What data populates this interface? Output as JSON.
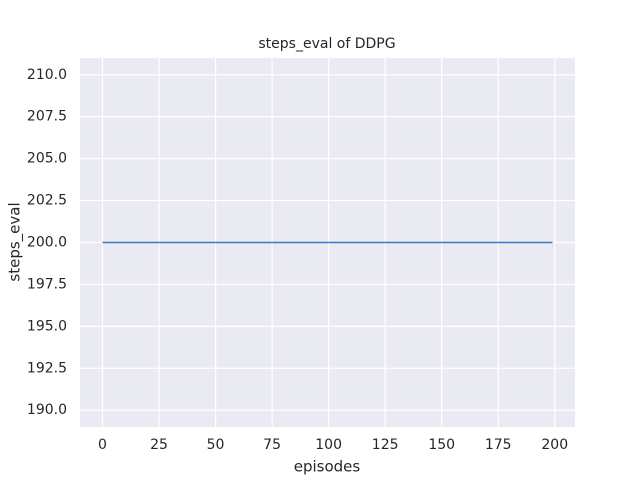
{
  "chart_data": {
    "type": "line",
    "title": "steps_eval of DDPG",
    "xlabel": "episodes",
    "ylabel": "steps_eval",
    "x": [
      0,
      1,
      2,
      3,
      4,
      5,
      6,
      7,
      8,
      9,
      10,
      11,
      12,
      13,
      14,
      15,
      16,
      17,
      18,
      19,
      20,
      21,
      22,
      23,
      24,
      25,
      26,
      27,
      28,
      29,
      30,
      31,
      32,
      33,
      34,
      35,
      36,
      37,
      38,
      39,
      40,
      41,
      42,
      43,
      44,
      45,
      46,
      47,
      48,
      49,
      50,
      51,
      52,
      53,
      54,
      55,
      56,
      57,
      58,
      59,
      60,
      61,
      62,
      63,
      64,
      65,
      66,
      67,
      68,
      69,
      70,
      71,
      72,
      73,
      74,
      75,
      76,
      77,
      78,
      79,
      80,
      81,
      82,
      83,
      84,
      85,
      86,
      87,
      88,
      89,
      90,
      91,
      92,
      93,
      94,
      95,
      96,
      97,
      98,
      99,
      100,
      101,
      102,
      103,
      104,
      105,
      106,
      107,
      108,
      109,
      110,
      111,
      112,
      113,
      114,
      115,
      116,
      117,
      118,
      119,
      120,
      121,
      122,
      123,
      124,
      125,
      126,
      127,
      128,
      129,
      130,
      131,
      132,
      133,
      134,
      135,
      136,
      137,
      138,
      139,
      140,
      141,
      142,
      143,
      144,
      145,
      146,
      147,
      148,
      149,
      150,
      151,
      152,
      153,
      154,
      155,
      156,
      157,
      158,
      159,
      160,
      161,
      162,
      163,
      164,
      165,
      166,
      167,
      168,
      169,
      170,
      171,
      172,
      173,
      174,
      175,
      176,
      177,
      178,
      179,
      180,
      181,
      182,
      183,
      184,
      185,
      186,
      187,
      188,
      189,
      190,
      191,
      192,
      193,
      194,
      195,
      196,
      197,
      198,
      199
    ],
    "series": [
      {
        "color": "#4c72b0",
        "values": [
          200,
          200,
          200,
          200,
          200,
          200,
          200,
          200,
          200,
          200,
          200,
          200,
          200,
          200,
          200,
          200,
          200,
          200,
          200,
          200,
          200,
          200,
          200,
          200,
          200,
          200,
          200,
          200,
          200,
          200,
          200,
          200,
          200,
          200,
          200,
          200,
          200,
          200,
          200,
          200,
          200,
          200,
          200,
          200,
          200,
          200,
          200,
          200,
          200,
          200,
          200,
          200,
          200,
          200,
          200,
          200,
          200,
          200,
          200,
          200,
          200,
          200,
          200,
          200,
          200,
          200,
          200,
          200,
          200,
          200,
          200,
          200,
          200,
          200,
          200,
          200,
          200,
          200,
          200,
          200,
          200,
          200,
          200,
          200,
          200,
          200,
          200,
          200,
          200,
          200,
          200,
          200,
          200,
          200,
          200,
          200,
          200,
          200,
          200,
          200,
          200,
          200,
          200,
          200,
          200,
          200,
          200,
          200,
          200,
          200,
          200,
          200,
          200,
          200,
          200,
          200,
          200,
          200,
          200,
          200,
          200,
          200,
          200,
          200,
          200,
          200,
          200,
          200,
          200,
          200,
          200,
          200,
          200,
          200,
          200,
          200,
          200,
          200,
          200,
          200,
          200,
          200,
          200,
          200,
          200,
          200,
          200,
          200,
          200,
          200,
          200,
          200,
          200,
          200,
          200,
          200,
          200,
          200,
          200,
          200,
          200,
          200,
          200,
          200,
          200,
          200,
          200,
          200,
          200,
          200,
          200,
          200,
          200,
          200,
          200,
          200,
          200,
          200,
          200,
          200,
          200,
          200,
          200,
          200,
          200,
          200,
          200,
          200,
          200,
          200,
          200,
          200,
          200,
          200,
          200,
          200,
          200,
          200,
          200,
          200
        ]
      }
    ],
    "xlim": [
      -9.95,
      208.95
    ],
    "xticks": [
      0,
      25,
      50,
      75,
      100,
      125,
      150,
      175,
      200
    ],
    "ylim": [
      189,
      211
    ],
    "yticks": [
      {
        "value": 190,
        "label": "190.0"
      },
      {
        "value": 192.5,
        "label": "192.5"
      },
      {
        "value": 195,
        "label": "195.0"
      },
      {
        "value": 197.5,
        "label": "197.5"
      },
      {
        "value": 200,
        "label": "200.0"
      },
      {
        "value": 202.5,
        "label": "202.5"
      },
      {
        "value": 205,
        "label": "205.0"
      },
      {
        "value": 207.5,
        "label": "207.5"
      },
      {
        "value": 210,
        "label": "210.0"
      }
    ],
    "grid": true
  }
}
